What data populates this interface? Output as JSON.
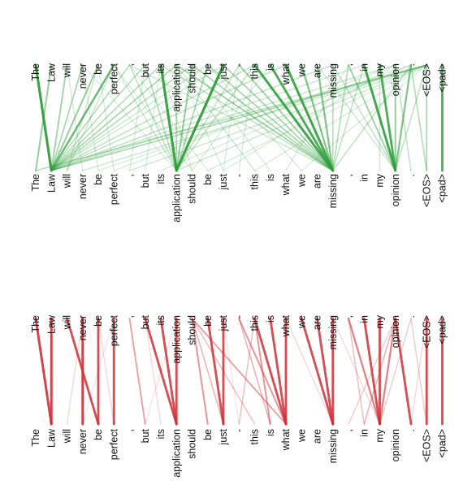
{
  "tokens": [
    "The",
    "Law",
    "will",
    "never",
    "be",
    "perfect",
    ",",
    "but",
    "its",
    "application",
    "should",
    "be",
    "just",
    "-",
    "this",
    "is",
    "what",
    "we",
    "are",
    "missing",
    ",",
    "in",
    "my",
    "opinion",
    ".",
    "<EOS>",
    "<pad>"
  ],
  "panels": [
    {
      "id": "top",
      "color": "#2e9e3a",
      "edges": [
        [
          0,
          1,
          0.95
        ],
        [
          1,
          0,
          0.5
        ],
        [
          2,
          1,
          0.45
        ],
        [
          3,
          1,
          0.4
        ],
        [
          4,
          1,
          0.5
        ],
        [
          5,
          1,
          0.7
        ],
        [
          6,
          1,
          0.35
        ],
        [
          7,
          1,
          0.35
        ],
        [
          8,
          1,
          0.35
        ],
        [
          9,
          1,
          0.4
        ],
        [
          10,
          1,
          0.35
        ],
        [
          11,
          1,
          0.25
        ],
        [
          12,
          1,
          0.25
        ],
        [
          14,
          1,
          0.3
        ],
        [
          16,
          1,
          0.3
        ],
        [
          19,
          1,
          0.3
        ],
        [
          21,
          1,
          0.25
        ],
        [
          23,
          1,
          0.25
        ],
        [
          25,
          1,
          0.2
        ],
        [
          4,
          2,
          0.25
        ],
        [
          5,
          2,
          0.25
        ],
        [
          2,
          3,
          0.2
        ],
        [
          3,
          4,
          0.2
        ],
        [
          4,
          5,
          0.2
        ],
        [
          7,
          6,
          0.2
        ],
        [
          8,
          7,
          0.2
        ],
        [
          8,
          9,
          0.95
        ],
        [
          12,
          9,
          0.95
        ],
        [
          10,
          9,
          0.5
        ],
        [
          9,
          9,
          0.4
        ],
        [
          11,
          9,
          0.4
        ],
        [
          13,
          9,
          0.3
        ],
        [
          14,
          9,
          0.3
        ],
        [
          7,
          9,
          0.35
        ],
        [
          6,
          9,
          0.3
        ],
        [
          5,
          9,
          0.25
        ],
        [
          15,
          10,
          0.2
        ],
        [
          13,
          12,
          0.2
        ],
        [
          14,
          13,
          0.2
        ],
        [
          14,
          19,
          0.9
        ],
        [
          15,
          19,
          0.85
        ],
        [
          16,
          19,
          0.9
        ],
        [
          17,
          19,
          0.6
        ],
        [
          18,
          19,
          0.6
        ],
        [
          13,
          19,
          0.45
        ],
        [
          12,
          19,
          0.4
        ],
        [
          11,
          19,
          0.4
        ],
        [
          10,
          19,
          0.4
        ],
        [
          9,
          19,
          0.45
        ],
        [
          8,
          19,
          0.3
        ],
        [
          6,
          19,
          0.25
        ],
        [
          20,
          19,
          0.35
        ],
        [
          21,
          19,
          0.3
        ],
        [
          24,
          19,
          0.3
        ],
        [
          19,
          19,
          0.35
        ],
        [
          21,
          23,
          0.9
        ],
        [
          22,
          23,
          0.85
        ],
        [
          24,
          23,
          0.6
        ],
        [
          20,
          23,
          0.45
        ],
        [
          23,
          23,
          0.5
        ],
        [
          19,
          23,
          0.3
        ],
        [
          25,
          23,
          0.3
        ],
        [
          18,
          23,
          0.25
        ],
        [
          25,
          0,
          0.35
        ],
        [
          25,
          1,
          0.3
        ],
        [
          25,
          3,
          0.25
        ],
        [
          24,
          4,
          0.2
        ],
        [
          23,
          5,
          0.2
        ],
        [
          25,
          6,
          0.25
        ],
        [
          24,
          8,
          0.2
        ],
        [
          25,
          9,
          0.25
        ],
        [
          25,
          11,
          0.2
        ],
        [
          23,
          12,
          0.2
        ],
        [
          25,
          14,
          0.2
        ],
        [
          20,
          16,
          0.2
        ],
        [
          25,
          17,
          0.2
        ],
        [
          22,
          22,
          0.25
        ],
        [
          24,
          25,
          0.35
        ],
        [
          25,
          25,
          0.4
        ],
        [
          23,
          24,
          0.3
        ],
        [
          26,
          26,
          0.85
        ],
        [
          9,
          14,
          0.25
        ],
        [
          10,
          15,
          0.2
        ],
        [
          11,
          17,
          0.2
        ],
        [
          5,
          10,
          0.2
        ],
        [
          3,
          9,
          0.2
        ],
        [
          6,
          11,
          0.2
        ],
        [
          9,
          12,
          0.2
        ],
        [
          8,
          10,
          0.2
        ]
      ]
    },
    {
      "id": "bottom",
      "color": "#cf2f35",
      "edges": [
        [
          0,
          1,
          0.9
        ],
        [
          1,
          1,
          0.9
        ],
        [
          2,
          4,
          0.85
        ],
        [
          3,
          2,
          0.2
        ],
        [
          3,
          3,
          0.9
        ],
        [
          4,
          4,
          0.85
        ],
        [
          5,
          5,
          0.85
        ],
        [
          4,
          5,
          0.2
        ],
        [
          7,
          9,
          0.85
        ],
        [
          8,
          9,
          0.85
        ],
        [
          9,
          9,
          0.85
        ],
        [
          6,
          7,
          0.45
        ],
        [
          7,
          8,
          0.2
        ],
        [
          10,
          11,
          0.5
        ],
        [
          10,
          16,
          0.45
        ],
        [
          10,
          12,
          0.35
        ],
        [
          10,
          14,
          0.3
        ],
        [
          11,
          12,
          0.85
        ],
        [
          12,
          12,
          0.85
        ],
        [
          14,
          16,
          0.85
        ],
        [
          15,
          16,
          0.85
        ],
        [
          16,
          16,
          0.85
        ],
        [
          13,
          16,
          0.5
        ],
        [
          14,
          15,
          0.5
        ],
        [
          13,
          15,
          0.35
        ],
        [
          14,
          13,
          0.3
        ],
        [
          17,
          19,
          0.85
        ],
        [
          18,
          19,
          0.85
        ],
        [
          19,
          19,
          0.85
        ],
        [
          16,
          19,
          0.2
        ],
        [
          20,
          22,
          0.6
        ],
        [
          21,
          22,
          0.85
        ],
        [
          22,
          22,
          0.85
        ],
        [
          23,
          22,
          0.6
        ],
        [
          20,
          21,
          0.3
        ],
        [
          23,
          21,
          0.35
        ],
        [
          24,
          22,
          0.25
        ],
        [
          23,
          20,
          0.25
        ],
        [
          19,
          22,
          0.2
        ],
        [
          23,
          24,
          0.85
        ],
        [
          25,
          25,
          0.85
        ],
        [
          26,
          26,
          0.85
        ],
        [
          25,
          24,
          0.2
        ],
        [
          24,
          25,
          0.25
        ],
        [
          5,
          3,
          0.15
        ],
        [
          9,
          7,
          0.15
        ],
        [
          12,
          13,
          0.15
        ]
      ]
    }
  ]
}
